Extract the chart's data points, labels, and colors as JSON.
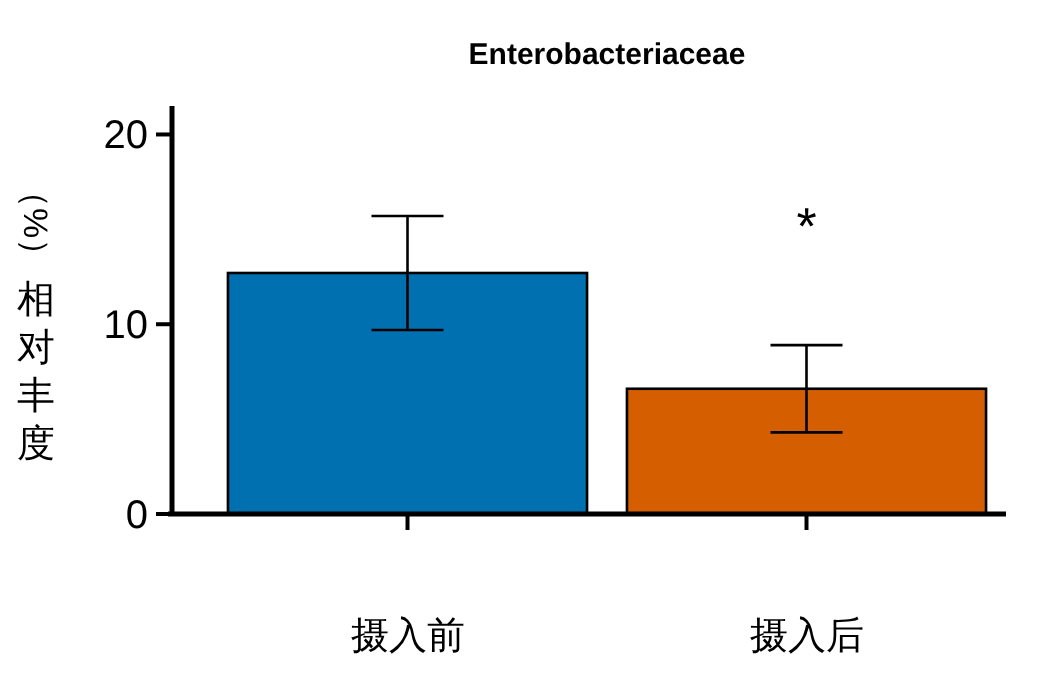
{
  "chart_data": {
    "type": "bar",
    "title": "Enterobacteriaceae",
    "ylabel": "（%）相对丰度",
    "categories": [
      "摄入前",
      "摄入后"
    ],
    "values": [
      12.7,
      6.6
    ],
    "errors": [
      3.0,
      2.3
    ],
    "colors": [
      "#0070b0",
      "#d55e00"
    ],
    "ylim": [
      0,
      21.5
    ],
    "yticks": [
      0,
      10,
      20
    ],
    "grid": false,
    "annotations": [
      "*"
    ]
  }
}
